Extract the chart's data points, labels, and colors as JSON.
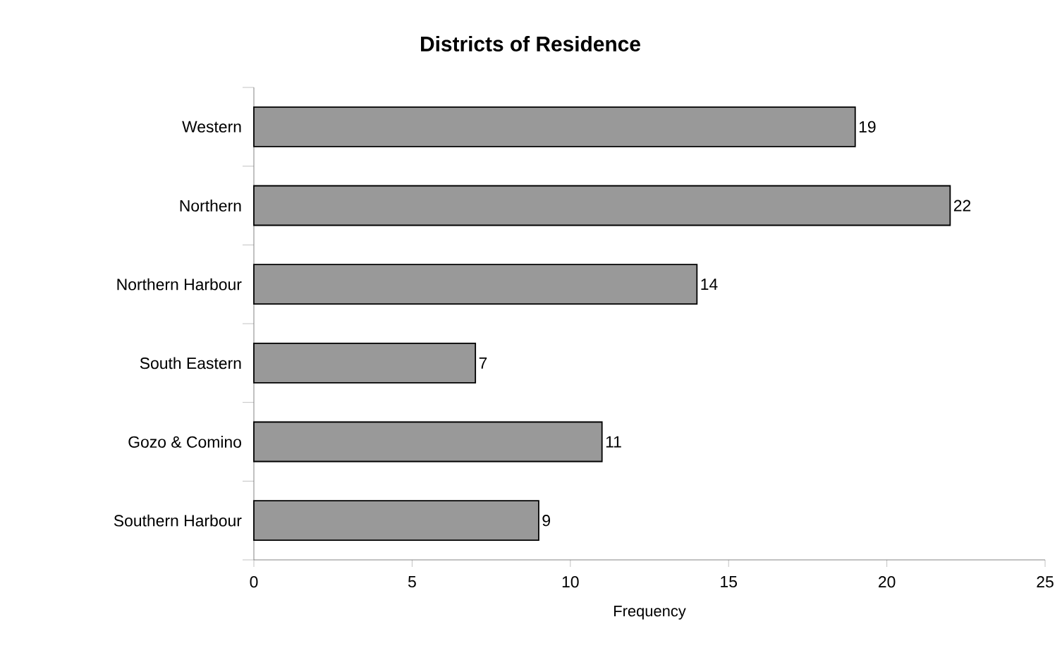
{
  "chart_data": {
    "type": "bar",
    "orientation": "horizontal",
    "title": "Districts of Residence",
    "xlabel": "Frequency",
    "categories": [
      "Western",
      "Northern",
      "Northern Harbour",
      "South Eastern",
      "Gozo & Comino",
      "Southern Harbour"
    ],
    "values": [
      19,
      22,
      14,
      7,
      11,
      9
    ],
    "color": "#999999",
    "xlim": [
      0,
      25
    ],
    "xticks": [
      0,
      5,
      10,
      15,
      20,
      25
    ],
    "data_labels": true
  }
}
